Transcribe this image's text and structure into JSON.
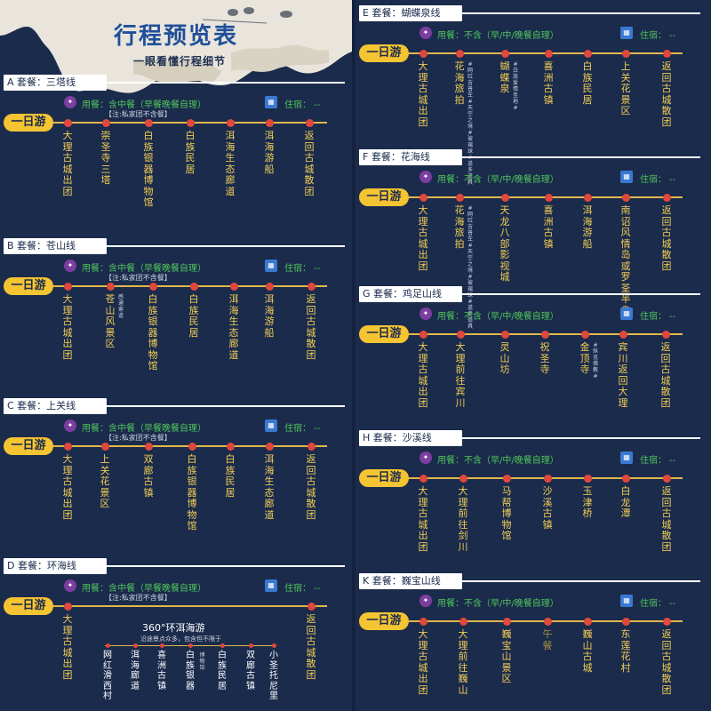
{
  "header": {
    "title": "行程预览表",
    "subtitle": "一眼看懂行程细节"
  },
  "badge": "一日游",
  "sections": {
    "A": {
      "label": "A 套餐：三塔线",
      "meal": "用餐：含中餐（早餐晚餐自理）",
      "note": "【注:私家团不含餐】",
      "stay": "住宿： --",
      "stops": [
        "大理古城出团",
        "崇圣寺三塔",
        "白族银器博物馆",
        "白族民居",
        "洱海生态廊道",
        "洱海游船",
        "返回古城散团"
      ]
    },
    "B": {
      "label": "B 套餐：苍山线",
      "meal": "用餐：含中餐（早餐晚餐自理）",
      "note": "【注:私家团不含餐】",
      "stay": "住宿： --",
      "stops": [
        "大理古城出团",
        "苍山风景区",
        "白族银器博物馆",
        "白族民居",
        "洱海生态廊道",
        "洱海游船",
        "返回古城散团"
      ],
      "subs": {
        "1": "感通索道"
      }
    },
    "C": {
      "label": "C 套餐：上关线",
      "meal": "用餐：含中餐（早餐晚餐自理）",
      "note": "【注:私家团不含餐】",
      "stay": "住宿： --",
      "stops": [
        "大理古城出团",
        "上关花景区",
        "双廊古镇",
        "白族银器博物馆",
        "白族民居",
        "洱海生态廊道",
        "返回古城散团"
      ]
    },
    "D": {
      "label": "D 套餐：环海线",
      "meal": "用餐：含中餐（早餐晚餐自理）",
      "note": "【注:私家团不含餐】",
      "stay": "住宿： --",
      "stops": [
        "大理古城出团",
        "返回古城散团"
      ],
      "loop_title": "360°环洱海游",
      "loop_note": "沿途景点众多，包含但不限于",
      "loop_stops": [
        "网红滑西村",
        "洱海廊道",
        "喜洲古镇",
        "白族银器",
        "白族民居",
        "双廊古镇",
        "小圣托尼里"
      ],
      "loop_sub": "博物馆"
    },
    "E": {
      "label": "E 套餐：蝴蝶泉线",
      "meal": "用餐：不含（早/中/晚餐自理）",
      "stay": "住宿： --",
      "stops": [
        "大理古城出团",
        "花海旅拍",
        "蝴蝶泉",
        "喜洲古镇",
        "白族民居",
        "上关花景区",
        "返回古城散团"
      ],
      "subs": {
        "1": "#网红吉普车#天空之境#玻璃球#道多道具",
        "2": "#白族爱情圣地#"
      }
    },
    "F": {
      "label": "F 套餐：花海线",
      "meal": "用餐：不含（早/中/晚餐自理）",
      "stay": "住宿： --",
      "stops": [
        "大理古城出团",
        "花海旅拍",
        "天龙八部影视城",
        "喜洲古镇",
        "洱海游船",
        "南诏风情岛或罗荃半岛",
        "返回古城散团"
      ],
      "subs": {
        "1": "#网红吉普车#天空之境#玻璃球#道多道具"
      }
    },
    "G": {
      "label": "G 套餐：鸡足山线",
      "meal": "用餐：不含（早/中/晚餐自理）",
      "stay": "住宿： --",
      "stops": [
        "大理古城出团",
        "大理前往宾川",
        "灵山坊",
        "祝圣寺",
        "金顶寺",
        "宾川返回大理",
        "返回古城散团"
      ],
      "subs": {
        "4": "#纵览佛教#"
      }
    },
    "H": {
      "label": "H 套餐：沙溪线",
      "meal": "用餐：不含（早/中/晚餐自理）",
      "stay": "住宿： --",
      "stops": [
        "大理古城出团",
        "大理前往剑川",
        "马帮博物馆",
        "沙溪古镇",
        "玉津桥",
        "白龙潭",
        "返回古城散团"
      ]
    },
    "K": {
      "label": "K 套餐：巍宝山线",
      "meal": "用餐：不含（早/中/晚餐自理）",
      "stay": "住宿： --",
      "stops": [
        "大理古城出团",
        "大理前往巍山",
        "巍宝山景区",
        "午餐",
        "巍山古城",
        "东莲花村",
        "返回古城散团"
      ],
      "dim": {
        "3": true
      }
    }
  }
}
